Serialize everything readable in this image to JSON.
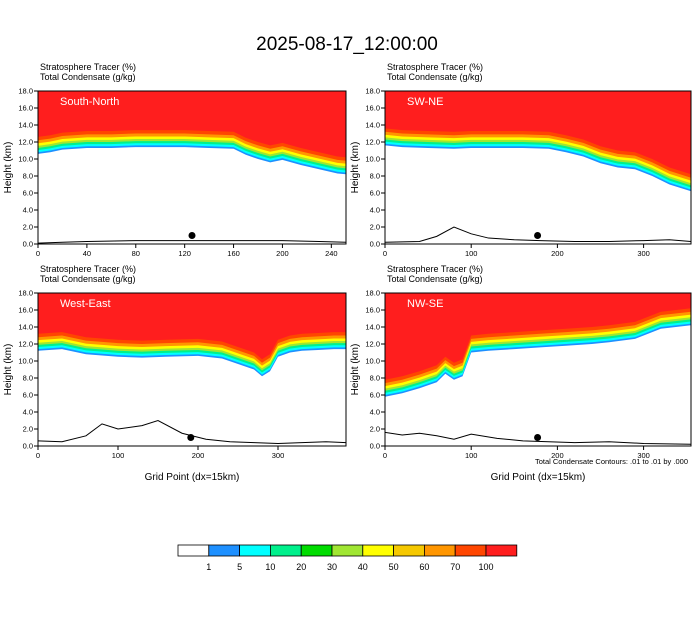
{
  "title": "2025-08-17_12:00:00",
  "colors": {
    "levels": [
      "#ffffff",
      "#1e90ff",
      "#00ffff",
      "#00f08c",
      "#00dc00",
      "#a0e632",
      "#ffff00",
      "#f5c800",
      "#ff9600",
      "#ff4600",
      "#ff1e1e"
    ],
    "frame": "#000000"
  },
  "colorbar": {
    "labels": [
      "1",
      "5",
      "10",
      "20",
      "30",
      "40",
      "50",
      "60",
      "70",
      "100"
    ]
  },
  "footnote": "Total Condensate Contours: .01 to .01 by .000",
  "chart_data": [
    {
      "type": "heatmap",
      "panel_label": "South-North",
      "header_line1": "Stratosphere Tracer   (%)",
      "header_line2": "Total Condensate   (g/kg)",
      "ylabel": "Height (km)",
      "xlabel": "",
      "xlim": [
        0,
        252
      ],
      "ylim": [
        0,
        18
      ],
      "xticks": [
        0,
        40,
        80,
        120,
        160,
        200,
        240
      ],
      "yticks": [
        0.0,
        2.0,
        4.0,
        6.0,
        8.0,
        10.0,
        12.0,
        14.0,
        16.0,
        18.0
      ],
      "tropopause_x": [
        0,
        10,
        20,
        40,
        60,
        80,
        100,
        120,
        140,
        160,
        170,
        180,
        190,
        200,
        215,
        230,
        245,
        252
      ],
      "tropopause_y": [
        12.6,
        12.8,
        13.1,
        13.3,
        13.3,
        13.4,
        13.4,
        13.4,
        13.3,
        13.2,
        12.5,
        12.0,
        11.6,
        11.9,
        11.3,
        10.8,
        10.3,
        10.2
      ],
      "terrain_x": [
        0,
        20,
        40,
        80,
        120,
        160,
        200,
        230,
        252
      ],
      "terrain_y": [
        0.1,
        0.2,
        0.3,
        0.4,
        0.4,
        0.4,
        0.4,
        0.3,
        0.2
      ],
      "marker": [
        126,
        1.0
      ]
    },
    {
      "type": "heatmap",
      "panel_label": "SW-NE",
      "header_line1": "Stratosphere Tracer   (%)",
      "header_line2": "Total Condensate   (g/kg)",
      "ylabel": "Height (km)",
      "xlabel": "",
      "xlim": [
        0,
        355
      ],
      "ylim": [
        0,
        18
      ],
      "xticks": [
        0,
        100,
        200,
        300
      ],
      "yticks": [
        0.0,
        2.0,
        4.0,
        6.0,
        8.0,
        10.0,
        12.0,
        14.0,
        16.0,
        18.0
      ],
      "tropopause_x": [
        0,
        20,
        50,
        80,
        100,
        130,
        160,
        190,
        210,
        230,
        250,
        270,
        290,
        310,
        330,
        355
      ],
      "tropopause_y": [
        13.6,
        13.4,
        13.3,
        13.2,
        13.3,
        13.3,
        13.3,
        13.2,
        12.8,
        12.3,
        11.5,
        11.0,
        10.8,
        10.0,
        9.0,
        8.2
      ],
      "terrain_x": [
        0,
        40,
        60,
        80,
        100,
        120,
        150,
        180,
        220,
        260,
        300,
        330,
        355
      ],
      "terrain_y": [
        0.2,
        0.3,
        0.9,
        2.0,
        1.2,
        0.7,
        0.5,
        0.4,
        0.3,
        0.3,
        0.4,
        0.5,
        0.3
      ],
      "marker": [
        177,
        1.0
      ]
    },
    {
      "type": "heatmap",
      "panel_label": "West-East",
      "header_line1": "Stratosphere Tracer   (%)",
      "header_line2": "Total Condensate   (g/kg)",
      "ylabel": "Height (km)",
      "xlabel": "Grid Point (dx=15km)",
      "xlim": [
        0,
        385
      ],
      "ylim": [
        0,
        18
      ],
      "xticks": [
        0,
        100,
        200,
        300
      ],
      "yticks": [
        0.0,
        2.0,
        4.0,
        6.0,
        8.0,
        10.0,
        12.0,
        14.0,
        16.0,
        18.0
      ],
      "tropopause_x": [
        0,
        30,
        60,
        100,
        130,
        160,
        200,
        230,
        270,
        280,
        290,
        300,
        315,
        330,
        350,
        370,
        385
      ],
      "tropopause_y": [
        13.2,
        13.4,
        12.8,
        12.5,
        12.4,
        12.5,
        12.6,
        12.3,
        11.0,
        10.2,
        10.8,
        12.5,
        13.0,
        13.2,
        13.3,
        13.4,
        13.4
      ],
      "terrain_x": [
        0,
        30,
        60,
        80,
        100,
        130,
        150,
        180,
        210,
        240,
        270,
        300,
        330,
        360,
        385
      ],
      "terrain_y": [
        0.6,
        0.5,
        1.2,
        2.6,
        2.0,
        2.4,
        3.0,
        1.5,
        0.8,
        0.5,
        0.4,
        0.3,
        0.4,
        0.5,
        0.4
      ],
      "marker": [
        191,
        1.0
      ]
    },
    {
      "type": "heatmap",
      "panel_label": "NW-SE",
      "header_line1": "Stratosphere Tracer   (%)",
      "header_line2": "Total Condensate   (g/kg)",
      "ylabel": "Height (km)",
      "xlabel": "Grid Point (dx=15km)",
      "xlim": [
        0,
        355
      ],
      "ylim": [
        0,
        18
      ],
      "xticks": [
        0,
        100,
        200,
        300
      ],
      "yticks": [
        0.0,
        2.0,
        4.0,
        6.0,
        8.0,
        10.0,
        12.0,
        14.0,
        16.0,
        18.0
      ],
      "tropopause_x": [
        0,
        20,
        40,
        60,
        70,
        80,
        90,
        100,
        120,
        150,
        180,
        210,
        240,
        260,
        290,
        320,
        355
      ],
      "tropopause_y": [
        7.8,
        8.2,
        8.8,
        9.5,
        10.5,
        9.8,
        10.2,
        13.0,
        13.2,
        13.4,
        13.6,
        13.8,
        14.0,
        14.2,
        14.6,
        15.8,
        16.2
      ],
      "terrain_x": [
        0,
        20,
        40,
        60,
        80,
        100,
        130,
        160,
        190,
        220,
        260,
        300,
        355
      ],
      "terrain_y": [
        1.6,
        1.3,
        1.5,
        1.2,
        0.8,
        1.4,
        0.9,
        0.6,
        0.5,
        0.4,
        0.5,
        0.3,
        0.2
      ],
      "marker": [
        177,
        1.0
      ]
    }
  ]
}
